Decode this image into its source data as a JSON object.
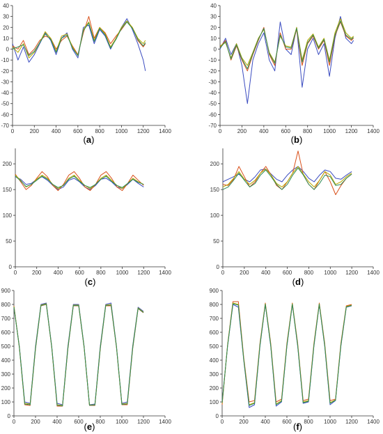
{
  "figure": {
    "series_colors": [
      "#3b4cc0",
      "#d9501a",
      "#b5a800",
      "#2e8b57"
    ]
  },
  "chart_data": [
    {
      "type": "line",
      "panel_label": "a",
      "xlim": [
        0,
        1400
      ],
      "ylim": [
        -70,
        40
      ],
      "xticks": [
        0,
        200,
        400,
        600,
        800,
        1000,
        1200,
        1400
      ],
      "yticks": [
        -70,
        -60,
        -50,
        -40,
        -30,
        -20,
        -10,
        0,
        10,
        20,
        30,
        40
      ],
      "x": [
        0,
        50,
        100,
        150,
        200,
        250,
        300,
        350,
        400,
        450,
        500,
        550,
        600,
        650,
        700,
        750,
        800,
        850,
        900,
        950,
        1000,
        1050,
        1100,
        1150,
        1200,
        1220
      ],
      "series": [
        {
          "values": [
            5,
            -10,
            2,
            -12,
            -5,
            5,
            15,
            8,
            -5,
            10,
            15,
            0,
            -8,
            20,
            22,
            5,
            18,
            12,
            0,
            10,
            20,
            28,
            18,
            5,
            -10,
            -20
          ]
        },
        {
          "values": [
            3,
            0,
            8,
            -5,
            0,
            8,
            12,
            10,
            0,
            8,
            12,
            3,
            -5,
            15,
            30,
            10,
            20,
            15,
            5,
            12,
            18,
            25,
            20,
            8,
            2,
            5
          ]
        },
        {
          "values": [
            2,
            -3,
            5,
            -8,
            -3,
            6,
            16,
            10,
            -2,
            12,
            14,
            2,
            -6,
            18,
            25,
            8,
            20,
            14,
            2,
            10,
            20,
            26,
            20,
            10,
            5,
            8
          ]
        },
        {
          "values": [
            0,
            2,
            4,
            -6,
            -2,
            6,
            14,
            9,
            -3,
            10,
            13,
            1,
            -6,
            17,
            24,
            7,
            19,
            13,
            1,
            9,
            19,
            25,
            19,
            9,
            3,
            6
          ]
        }
      ]
    },
    {
      "type": "line",
      "panel_label": "b",
      "xlim": [
        0,
        1400
      ],
      "ylim": [
        -70,
        40
      ],
      "xticks": [
        0,
        200,
        400,
        600,
        800,
        1000,
        1200,
        1400
      ],
      "yticks": [
        -70,
        -60,
        -50,
        -40,
        -30,
        -20,
        -10,
        0,
        10,
        20,
        30,
        40
      ],
      "x": [
        0,
        50,
        100,
        150,
        200,
        250,
        300,
        350,
        400,
        450,
        500,
        550,
        600,
        650,
        700,
        750,
        800,
        850,
        900,
        950,
        1000,
        1050,
        1100,
        1150,
        1200,
        1220
      ],
      "series": [
        {
          "values": [
            0,
            10,
            -5,
            5,
            -15,
            -50,
            -10,
            5,
            15,
            -10,
            -20,
            25,
            0,
            -5,
            20,
            -35,
            0,
            10,
            -5,
            5,
            -25,
            10,
            30,
            10,
            5,
            8
          ]
        },
        {
          "values": [
            2,
            8,
            -10,
            3,
            -10,
            -20,
            -5,
            8,
            20,
            -5,
            -15,
            15,
            0,
            0,
            18,
            -15,
            5,
            12,
            0,
            8,
            -15,
            12,
            25,
            12,
            8,
            10
          ]
        },
        {
          "values": [
            3,
            6,
            -8,
            5,
            -8,
            -15,
            -3,
            10,
            18,
            -3,
            -12,
            12,
            3,
            2,
            20,
            -10,
            8,
            14,
            2,
            10,
            -10,
            15,
            28,
            15,
            10,
            12
          ]
        },
        {
          "values": [
            1,
            7,
            -9,
            4,
            -9,
            -18,
            -4,
            9,
            19,
            -4,
            -13,
            13,
            2,
            1,
            19,
            -12,
            6,
            13,
            1,
            9,
            -12,
            13,
            26,
            13,
            9,
            11
          ]
        }
      ]
    },
    {
      "type": "line",
      "panel_label": "c",
      "xlim": [
        0,
        1400
      ],
      "ylim": [
        0,
        230
      ],
      "xticks": [
        0,
        200,
        400,
        600,
        800,
        1000,
        1200,
        1400
      ],
      "yticks": [
        0,
        50,
        100,
        150,
        200
      ],
      "x": [
        0,
        50,
        100,
        150,
        200,
        250,
        300,
        350,
        400,
        450,
        500,
        550,
        600,
        650,
        700,
        750,
        800,
        850,
        900,
        950,
        1000,
        1050,
        1100,
        1150,
        1200
      ],
      "series": [
        {
          "values": [
            175,
            170,
            160,
            162,
            170,
            175,
            168,
            158,
            150,
            155,
            168,
            172,
            165,
            155,
            150,
            158,
            170,
            172,
            165,
            155,
            152,
            160,
            170,
            162,
            155
          ]
        },
        {
          "values": [
            180,
            165,
            150,
            158,
            172,
            185,
            175,
            158,
            148,
            160,
            178,
            185,
            172,
            155,
            148,
            160,
            178,
            185,
            172,
            155,
            148,
            162,
            178,
            168,
            158
          ]
        },
        {
          "values": [
            178,
            168,
            155,
            160,
            170,
            178,
            172,
            160,
            152,
            158,
            172,
            178,
            168,
            158,
            152,
            160,
            172,
            178,
            168,
            158,
            152,
            162,
            172,
            165,
            160
          ]
        },
        {
          "values": [
            176,
            167,
            156,
            160,
            168,
            176,
            170,
            160,
            154,
            158,
            170,
            176,
            166,
            158,
            154,
            160,
            170,
            176,
            166,
            158,
            154,
            162,
            170,
            164,
            160
          ]
        }
      ]
    },
    {
      "type": "line",
      "panel_label": "d",
      "xlim": [
        0,
        1400
      ],
      "ylim": [
        0,
        230
      ],
      "xticks": [
        0,
        200,
        400,
        600,
        800,
        1000,
        1200,
        1400
      ],
      "yticks": [
        0,
        50,
        100,
        150,
        200
      ],
      "x": [
        0,
        50,
        100,
        150,
        200,
        250,
        300,
        350,
        400,
        450,
        500,
        550,
        600,
        650,
        700,
        750,
        800,
        850,
        900,
        950,
        1000,
        1050,
        1100,
        1150,
        1200
      ],
      "series": [
        {
          "values": [
            165,
            170,
            175,
            180,
            170,
            165,
            175,
            188,
            190,
            180,
            170,
            165,
            178,
            188,
            195,
            185,
            172,
            165,
            178,
            188,
            185,
            172,
            170,
            178,
            185
          ]
        },
        {
          "values": [
            160,
            158,
            170,
            195,
            175,
            155,
            165,
            182,
            195,
            178,
            158,
            150,
            165,
            182,
            225,
            178,
            160,
            150,
            168,
            185,
            165,
            140,
            158,
            172,
            180
          ]
        },
        {
          "values": [
            155,
            160,
            172,
            185,
            170,
            160,
            168,
            182,
            190,
            178,
            162,
            155,
            165,
            182,
            195,
            180,
            165,
            155,
            168,
            185,
            178,
            160,
            165,
            175,
            182
          ]
        },
        {
          "values": [
            150,
            155,
            168,
            182,
            168,
            155,
            162,
            178,
            188,
            175,
            160,
            150,
            160,
            178,
            192,
            178,
            160,
            150,
            162,
            178,
            175,
            158,
            160,
            172,
            180
          ]
        }
      ]
    },
    {
      "type": "line",
      "panel_label": "e",
      "xlim": [
        0,
        1400
      ],
      "ylim": [
        0,
        900
      ],
      "xticks": [
        0,
        200,
        400,
        600,
        800,
        1000,
        1200,
        1400
      ],
      "yticks": [
        0,
        100,
        200,
        300,
        400,
        500,
        600,
        700,
        800,
        900
      ],
      "x": [
        0,
        50,
        100,
        150,
        200,
        250,
        300,
        350,
        400,
        450,
        500,
        550,
        600,
        650,
        700,
        750,
        800,
        850,
        900,
        950,
        1000,
        1050,
        1100,
        1150,
        1200
      ],
      "series": [
        {
          "values": [
            780,
            500,
            100,
            90,
            500,
            800,
            810,
            500,
            90,
            80,
            500,
            800,
            800,
            500,
            80,
            85,
            500,
            800,
            810,
            500,
            90,
            100,
            500,
            780,
            750
          ]
        },
        {
          "values": [
            790,
            490,
            80,
            75,
            480,
            790,
            800,
            490,
            70,
            70,
            480,
            790,
            790,
            490,
            75,
            75,
            480,
            790,
            790,
            490,
            80,
            80,
            480,
            770,
            740
          ]
        },
        {
          "values": [
            785,
            495,
            90,
            85,
            490,
            795,
            805,
            495,
            80,
            75,
            490,
            795,
            795,
            495,
            78,
            80,
            490,
            795,
            800,
            495,
            85,
            90,
            490,
            775,
            745
          ]
        },
        {
          "values": [
            782,
            492,
            85,
            80,
            485,
            792,
            802,
            492,
            76,
            72,
            485,
            792,
            792,
            492,
            76,
            78,
            485,
            792,
            796,
            492,
            82,
            86,
            485,
            772,
            742
          ]
        }
      ]
    },
    {
      "type": "line",
      "panel_label": "f",
      "xlim": [
        0,
        1400
      ],
      "ylim": [
        0,
        900
      ],
      "xticks": [
        0,
        200,
        400,
        600,
        800,
        1000,
        1200,
        1400
      ],
      "yticks": [
        0,
        100,
        200,
        300,
        400,
        500,
        600,
        700,
        800,
        900
      ],
      "x": [
        0,
        50,
        100,
        150,
        200,
        250,
        300,
        350,
        400,
        450,
        500,
        550,
        600,
        650,
        700,
        750,
        800,
        850,
        900,
        950,
        1000,
        1050,
        1100,
        1150,
        1200
      ],
      "series": [
        {
          "values": [
            100,
            500,
            800,
            780,
            400,
            60,
            80,
            500,
            800,
            500,
            70,
            100,
            500,
            800,
            500,
            90,
            100,
            500,
            800,
            500,
            80,
            110,
            500,
            780,
            790
          ]
        },
        {
          "values": [
            80,
            510,
            820,
            820,
            420,
            100,
            110,
            520,
            810,
            520,
            100,
            120,
            520,
            810,
            520,
            110,
            120,
            520,
            810,
            520,
            110,
            120,
            520,
            790,
            800
          ]
        },
        {
          "values": [
            90,
            505,
            810,
            800,
            410,
            80,
            95,
            510,
            805,
            510,
            85,
            110,
            510,
            805,
            510,
            100,
            110,
            510,
            805,
            510,
            95,
            115,
            510,
            785,
            795
          ]
        },
        {
          "values": [
            95,
            502,
            805,
            795,
            405,
            75,
            90,
            505,
            802,
            505,
            80,
            105,
            505,
            802,
            505,
            95,
            105,
            505,
            802,
            505,
            90,
            112,
            505,
            782,
            792
          ]
        }
      ]
    }
  ]
}
